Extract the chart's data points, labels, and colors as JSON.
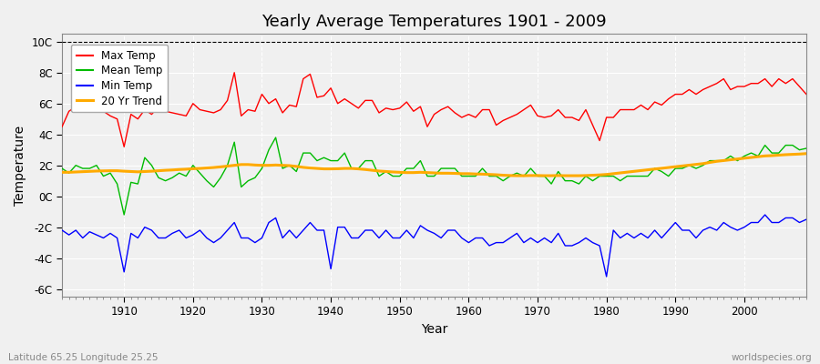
{
  "years": [
    1901,
    1902,
    1903,
    1904,
    1905,
    1906,
    1907,
    1908,
    1909,
    1910,
    1911,
    1912,
    1913,
    1914,
    1915,
    1916,
    1917,
    1918,
    1919,
    1920,
    1921,
    1922,
    1923,
    1924,
    1925,
    1926,
    1927,
    1928,
    1929,
    1930,
    1931,
    1932,
    1933,
    1934,
    1935,
    1936,
    1937,
    1938,
    1939,
    1940,
    1941,
    1942,
    1943,
    1944,
    1945,
    1946,
    1947,
    1948,
    1949,
    1950,
    1951,
    1952,
    1953,
    1954,
    1955,
    1956,
    1957,
    1958,
    1959,
    1960,
    1961,
    1962,
    1963,
    1964,
    1965,
    1966,
    1967,
    1968,
    1969,
    1970,
    1971,
    1972,
    1973,
    1974,
    1975,
    1976,
    1977,
    1978,
    1979,
    1980,
    1981,
    1982,
    1983,
    1984,
    1985,
    1986,
    1987,
    1988,
    1989,
    1990,
    1991,
    1992,
    1993,
    1994,
    1995,
    1996,
    1997,
    1998,
    1999,
    2000,
    2001,
    2002,
    2003,
    2004,
    2005,
    2006,
    2007,
    2008,
    2009
  ],
  "max_temp": [
    4.5,
    5.5,
    5.8,
    5.6,
    5.7,
    5.9,
    5.5,
    5.2,
    5.0,
    3.2,
    5.3,
    5.0,
    5.6,
    5.3,
    5.8,
    5.5,
    5.4,
    5.3,
    5.2,
    6.0,
    5.6,
    5.5,
    5.4,
    5.6,
    6.2,
    8.0,
    5.2,
    5.6,
    5.5,
    6.6,
    6.0,
    6.3,
    5.4,
    5.9,
    5.8,
    7.6,
    7.9,
    6.4,
    6.5,
    7.0,
    6.0,
    6.3,
    6.0,
    5.7,
    6.2,
    6.2,
    5.4,
    5.7,
    5.6,
    5.7,
    6.1,
    5.5,
    5.8,
    4.5,
    5.3,
    5.6,
    5.8,
    5.4,
    5.1,
    5.3,
    5.1,
    5.6,
    5.6,
    4.6,
    4.9,
    5.1,
    5.3,
    5.6,
    5.9,
    5.2,
    5.1,
    5.2,
    5.6,
    5.1,
    5.1,
    4.9,
    5.6,
    4.6,
    3.6,
    5.1,
    5.1,
    5.6,
    5.6,
    5.6,
    5.9,
    5.6,
    6.1,
    5.9,
    6.3,
    6.6,
    6.6,
    6.9,
    6.6,
    6.9,
    7.1,
    7.3,
    7.6,
    6.9,
    7.1,
    7.1,
    7.3,
    7.3,
    7.6,
    7.1,
    7.6,
    7.3,
    7.6,
    7.1,
    6.6
  ],
  "mean_temp": [
    1.8,
    1.5,
    2.0,
    1.8,
    1.8,
    2.0,
    1.3,
    1.5,
    0.8,
    -1.2,
    0.9,
    0.8,
    2.5,
    2.0,
    1.2,
    1.0,
    1.2,
    1.5,
    1.3,
    2.0,
    1.5,
    1.0,
    0.6,
    1.2,
    2.0,
    3.5,
    0.6,
    1.0,
    1.2,
    1.8,
    3.0,
    3.8,
    1.8,
    2.0,
    1.6,
    2.8,
    2.8,
    2.3,
    2.5,
    2.3,
    2.3,
    2.8,
    1.8,
    1.8,
    2.3,
    2.3,
    1.3,
    1.6,
    1.3,
    1.3,
    1.8,
    1.8,
    2.3,
    1.3,
    1.3,
    1.8,
    1.8,
    1.8,
    1.3,
    1.3,
    1.3,
    1.8,
    1.3,
    1.3,
    1.0,
    1.3,
    1.5,
    1.3,
    1.8,
    1.3,
    1.3,
    0.8,
    1.6,
    1.0,
    1.0,
    0.8,
    1.3,
    1.0,
    1.3,
    1.3,
    1.3,
    1.0,
    1.3,
    1.3,
    1.3,
    1.3,
    1.8,
    1.6,
    1.3,
    1.8,
    1.8,
    2.0,
    1.8,
    2.0,
    2.3,
    2.3,
    2.3,
    2.6,
    2.3,
    2.6,
    2.8,
    2.6,
    3.3,
    2.8,
    2.8,
    3.3,
    3.3,
    3.0,
    3.1
  ],
  "min_temp": [
    -2.2,
    -2.5,
    -2.2,
    -2.7,
    -2.3,
    -2.5,
    -2.7,
    -2.4,
    -2.7,
    -4.9,
    -2.4,
    -2.7,
    -2.0,
    -2.2,
    -2.7,
    -2.7,
    -2.4,
    -2.2,
    -2.7,
    -2.5,
    -2.2,
    -2.7,
    -3.0,
    -2.7,
    -2.2,
    -1.7,
    -2.7,
    -2.7,
    -3.0,
    -2.7,
    -1.7,
    -1.4,
    -2.7,
    -2.2,
    -2.7,
    -2.2,
    -1.7,
    -2.2,
    -2.2,
    -4.7,
    -2.0,
    -2.0,
    -2.7,
    -2.7,
    -2.2,
    -2.2,
    -2.7,
    -2.2,
    -2.7,
    -2.7,
    -2.2,
    -2.7,
    -1.9,
    -2.2,
    -2.4,
    -2.7,
    -2.2,
    -2.2,
    -2.7,
    -3.0,
    -2.7,
    -2.7,
    -3.2,
    -3.0,
    -3.0,
    -2.7,
    -2.4,
    -3.0,
    -2.7,
    -3.0,
    -2.7,
    -3.0,
    -2.4,
    -3.2,
    -3.2,
    -3.0,
    -2.7,
    -3.0,
    -3.2,
    -5.2,
    -2.2,
    -2.7,
    -2.4,
    -2.7,
    -2.4,
    -2.7,
    -2.2,
    -2.7,
    -2.2,
    -1.7,
    -2.2,
    -2.2,
    -2.7,
    -2.2,
    -2.0,
    -2.2,
    -1.7,
    -2.0,
    -2.2,
    -2.0,
    -1.7,
    -1.7,
    -1.2,
    -1.7,
    -1.7,
    -1.4,
    -1.4,
    -1.7,
    -1.5
  ],
  "trend_20yr": [
    1.55,
    1.55,
    1.57,
    1.59,
    1.61,
    1.63,
    1.64,
    1.65,
    1.65,
    1.62,
    1.6,
    1.58,
    1.6,
    1.62,
    1.65,
    1.68,
    1.7,
    1.73,
    1.75,
    1.78,
    1.8,
    1.83,
    1.86,
    1.9,
    1.95,
    2.0,
    2.05,
    2.05,
    2.02,
    2.0,
    2.0,
    2.02,
    2.0,
    1.98,
    1.93,
    1.87,
    1.83,
    1.8,
    1.77,
    1.77,
    1.78,
    1.8,
    1.8,
    1.77,
    1.73,
    1.68,
    1.63,
    1.6,
    1.57,
    1.55,
    1.53,
    1.53,
    1.55,
    1.53,
    1.51,
    1.49,
    1.49,
    1.48,
    1.46,
    1.46,
    1.44,
    1.43,
    1.41,
    1.39,
    1.36,
    1.34,
    1.33,
    1.33,
    1.34,
    1.34,
    1.33,
    1.33,
    1.34,
    1.33,
    1.33,
    1.33,
    1.34,
    1.36,
    1.38,
    1.41,
    1.46,
    1.51,
    1.56,
    1.61,
    1.66,
    1.71,
    1.76,
    1.81,
    1.86,
    1.91,
    1.96,
    2.01,
    2.06,
    2.11,
    2.19,
    2.26,
    2.31,
    2.36,
    2.41,
    2.46,
    2.51,
    2.56,
    2.61,
    2.63,
    2.66,
    2.69,
    2.71,
    2.73,
    2.76
  ],
  "title": "Yearly Average Temperatures 1901 - 2009",
  "xlabel": "Year",
  "ylabel": "Temperature",
  "ylim": [
    -6.5,
    10.5
  ],
  "xlim": [
    1901,
    2009
  ],
  "yticks": [
    -6,
    -4,
    -2,
    0,
    2,
    4,
    6,
    8,
    10
  ],
  "ytick_labels": [
    "-6C",
    "-4C",
    "-2C",
    "0C",
    "2C",
    "4C",
    "6C",
    "8C",
    "10C"
  ],
  "xticks": [
    1910,
    1920,
    1930,
    1940,
    1950,
    1960,
    1970,
    1980,
    1990,
    2000
  ],
  "max_color": "#ff0000",
  "mean_color": "#00bb00",
  "min_color": "#0000ff",
  "trend_color": "#ffaa00",
  "bg_color": "#f0f0f0",
  "plot_bg_color": "#f0f0f0",
  "grid_color": "#ffffff",
  "legend_labels": [
    "Max Temp",
    "Mean Temp",
    "Min Temp",
    "20 Yr Trend"
  ],
  "footer_left": "Latitude 65.25 Longitude 25.25",
  "footer_right": "worldspecies.org",
  "dashed_line_y": 10,
  "line_width": 1.0
}
